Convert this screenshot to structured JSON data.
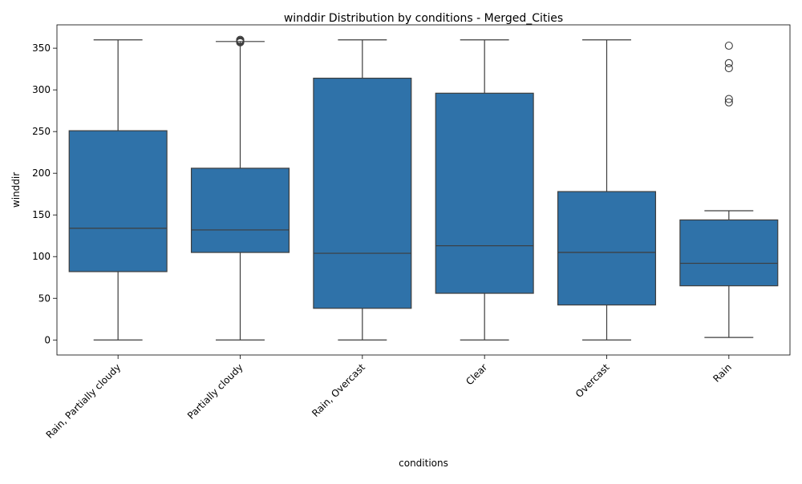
{
  "chart_data": {
    "type": "box",
    "title": "winddir Distribution by conditions - Merged_Cities",
    "xlabel": "conditions",
    "ylabel": "winddir",
    "ylim": [
      -18,
      378
    ],
    "yticks": [
      0,
      50,
      100,
      150,
      200,
      250,
      300,
      350
    ],
    "grid": false,
    "box_color": "#2f72a9",
    "line_color": "#3d3d3d",
    "categories": [
      "Rain, Partially cloudy",
      "Partially cloudy",
      "Rain, Overcast",
      "Clear",
      "Overcast",
      "Rain"
    ],
    "boxes": [
      {
        "category": "Rain, Partially cloudy",
        "whisker_low": 0,
        "q1": 82,
        "median": 134,
        "q3": 251,
        "whisker_high": 360,
        "outliers": []
      },
      {
        "category": "Partially cloudy",
        "whisker_low": 0,
        "q1": 105,
        "median": 132,
        "q3": 206,
        "whisker_high": 358,
        "outliers": [
          357,
          358,
          359,
          360
        ]
      },
      {
        "category": "Rain, Overcast",
        "whisker_low": 0,
        "q1": 38,
        "median": 104,
        "q3": 314,
        "whisker_high": 360,
        "outliers": []
      },
      {
        "category": "Clear",
        "whisker_low": 0,
        "q1": 56,
        "median": 113,
        "q3": 296,
        "whisker_high": 360,
        "outliers": []
      },
      {
        "category": "Overcast",
        "whisker_low": 0,
        "q1": 42,
        "median": 105,
        "q3": 178,
        "whisker_high": 360,
        "outliers": []
      },
      {
        "category": "Rain",
        "whisker_low": 3,
        "q1": 65,
        "median": 92,
        "q3": 144,
        "whisker_high": 155,
        "outliers": [
          285,
          289,
          326,
          332,
          353
        ]
      }
    ]
  }
}
